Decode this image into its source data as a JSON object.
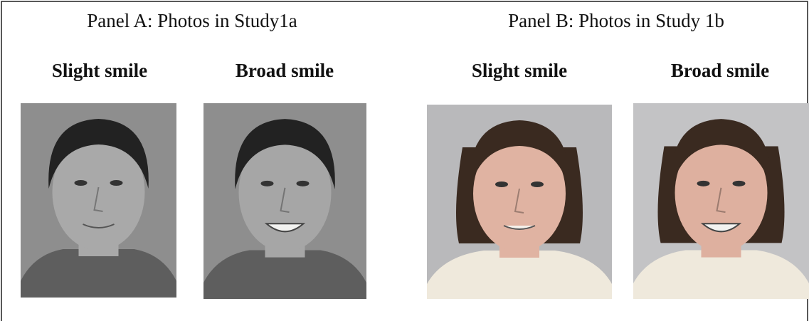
{
  "panel_a": {
    "title": "Panel A: Photos in Study1a",
    "photos": [
      {
        "label": "Slight smile"
      },
      {
        "label": "Broad smile"
      }
    ]
  },
  "panel_b": {
    "title": "Panel B: Photos in Study 1b",
    "photos": [
      {
        "label": "Slight smile"
      },
      {
        "label": "Broad smile"
      }
    ]
  }
}
